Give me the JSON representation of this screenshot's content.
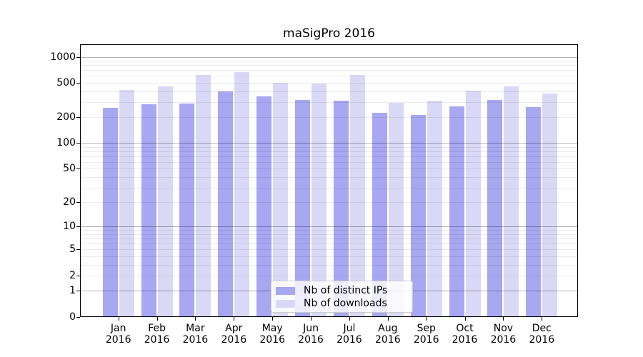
{
  "title": "maSigPro 2016",
  "colors": {
    "bar_distinct_ips": "#a7a7f2",
    "bar_downloads": "#d9d9f7",
    "grid_major": "#b3b3b3",
    "grid_minor": "#ececec",
    "axis": "#000000",
    "background": "#ffffff"
  },
  "chart_data": {
    "type": "bar",
    "title": "maSigPro 2016",
    "categories": [
      "Jan 2016",
      "Feb 2016",
      "Mar 2016",
      "Apr 2016",
      "May 2016",
      "Jun 2016",
      "Jul 2016",
      "Aug 2016",
      "Sep 2016",
      "Oct 2016",
      "Nov 2016",
      "Dec 2016"
    ],
    "series": [
      {
        "name": "Nb of distinct IPs",
        "color": "#a7a7f2",
        "values": [
          258,
          285,
          290,
          400,
          351,
          319,
          313,
          227,
          214,
          269,
          319,
          264
        ]
      },
      {
        "name": "Nb of downloads",
        "color": "#d9d9f7",
        "values": [
          415,
          457,
          620,
          669,
          503,
          494,
          620,
          296,
          313,
          408,
          457,
          379
        ]
      }
    ],
    "y_scale": "log1p",
    "y_ticks": [
      0,
      1,
      2,
      5,
      10,
      20,
      50,
      100,
      200,
      500,
      1000
    ],
    "ylim": [
      0,
      1380
    ],
    "xlabel": "",
    "ylabel": "",
    "grid": true,
    "legend_position": "inside lower-center"
  }
}
